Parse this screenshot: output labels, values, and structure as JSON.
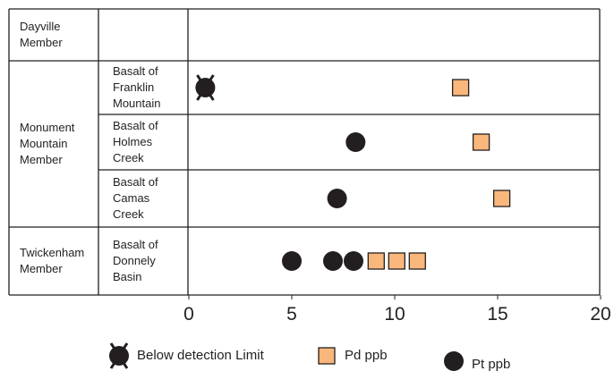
{
  "chart_data": {
    "type": "dot",
    "members": [
      "Dayville Member",
      "Monument Mountain Member",
      "Twickenham Member"
    ],
    "categories": [
      null,
      "Basalt of Franklin Mountain",
      "Basalt of Holmes Creek",
      "Basalt of Camas Creek",
      "Basalt of Donnely Basin"
    ],
    "series": [
      {
        "name": "Below detection Limit",
        "color": "#231f20",
        "marker": "x-circle",
        "values": [
          [],
          [
            0.8
          ],
          [],
          [],
          []
        ]
      },
      {
        "name": "Pd ppb",
        "color": "#f9b77b",
        "marker": "square",
        "values": [
          [],
          [
            13.2
          ],
          [
            14.2
          ],
          [
            15.2
          ],
          [
            9.1,
            10.1,
            11.1
          ]
        ]
      },
      {
        "name": "Pt ppb",
        "color": "#231f20",
        "marker": "circle",
        "values": [
          [],
          [],
          [
            8.1
          ],
          [
            7.2
          ],
          [
            5,
            7,
            8
          ]
        ]
      }
    ],
    "xlim": [
      0,
      20
    ],
    "xticks": [
      0,
      5,
      10,
      15,
      20
    ]
  }
}
